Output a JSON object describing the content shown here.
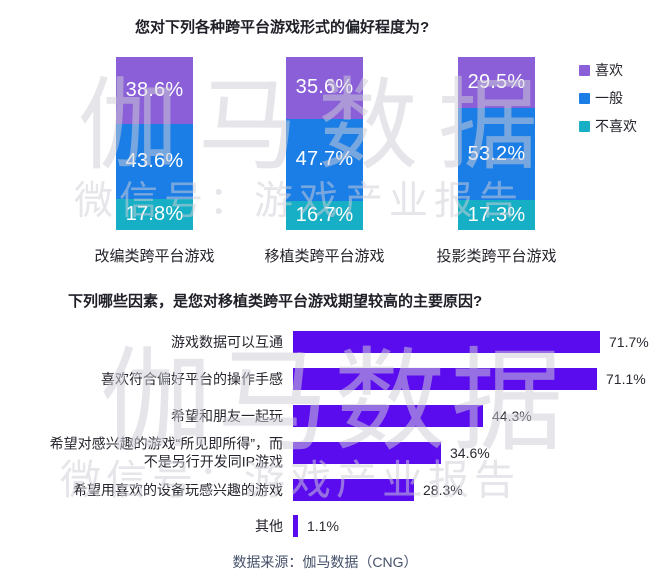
{
  "watermark": {
    "brand": "伽马数据",
    "wechat": "微信号：游戏产业报告"
  },
  "footer": {
    "source": "数据来源：伽马数据（CNG）"
  },
  "chart_data": [
    {
      "type": "bar",
      "subtype": "stacked_vertical",
      "title": "您对下列各种跨平台游戏形式的偏好程度为?",
      "categories": [
        "改编类跨平台游戏",
        "移植类跨平台游戏",
        "投影类跨平台游戏"
      ],
      "series": [
        {
          "key": "like",
          "name": "喜欢",
          "color": "#8a5fd8",
          "values": [
            38.6,
            35.6,
            29.5
          ]
        },
        {
          "key": "neutral",
          "name": "一般",
          "color": "#1a7ee6",
          "values": [
            43.6,
            47.7,
            53.2
          ]
        },
        {
          "key": "dislike",
          "name": "不喜欢",
          "color": "#16afc5",
          "values": [
            17.8,
            16.7,
            17.3
          ]
        }
      ],
      "ylim": [
        0,
        100
      ],
      "value_suffix": "%",
      "legend_position": "right",
      "grid": false
    },
    {
      "type": "bar",
      "subtype": "horizontal",
      "title": "下列哪些因素，是您对移植类跨平台游戏期望较高的主要原因?",
      "categories": [
        "游戏数据可以互通",
        "喜欢符合偏好平台的操作手感",
        "希望和朋友一起玩",
        "希望对感兴趣的游戏“所见即所得”，而不是另行开发同IP游戏",
        "希望用喜欢的设备玩感兴趣的游戏",
        "其他"
      ],
      "values": [
        71.7,
        71.1,
        44.3,
        34.6,
        28.3,
        1.1
      ],
      "bar_color": "#5a0cee",
      "xlim": [
        0,
        80
      ],
      "value_suffix": "%",
      "grid": false
    }
  ]
}
